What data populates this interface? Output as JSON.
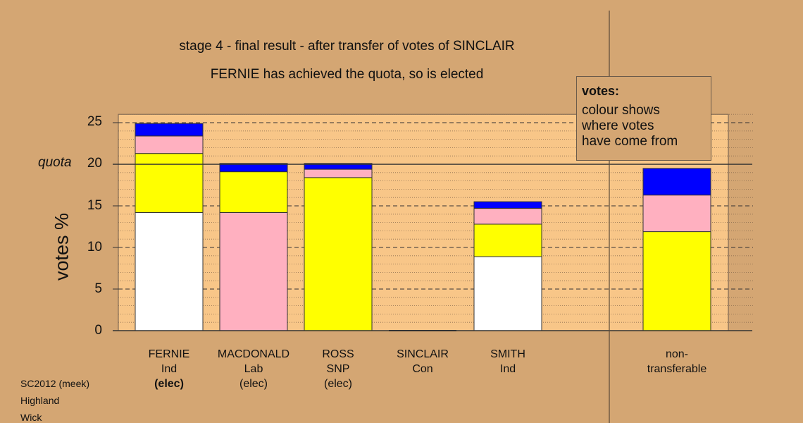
{
  "titles": {
    "line1": "stage 4 - final result - after transfer of votes of SINCLAIR",
    "line2": "FERNIE has achieved the quota, so is elected"
  },
  "legend": {
    "title": "votes:",
    "lines": [
      "colour shows",
      "where votes",
      "have come from"
    ]
  },
  "axis": {
    "ylabel": "votes %",
    "quota_label": "quota",
    "ticks": [
      "0",
      "5",
      "10",
      "15",
      "20",
      "25"
    ]
  },
  "candidates": [
    {
      "name": "FERNIE",
      "party": "Ind",
      "status": "(elec)",
      "status_bold": true
    },
    {
      "name": "MACDONALD",
      "party": "Lab",
      "status": "(elec)",
      "status_bold": false
    },
    {
      "name": "ROSS",
      "party": "SNP",
      "status": "(elec)",
      "status_bold": false
    },
    {
      "name": "SINCLAIR",
      "party": "Con",
      "status": "",
      "status_bold": false
    },
    {
      "name": "SMITH",
      "party": "Ind",
      "status": "",
      "status_bold": false
    }
  ],
  "nontransferable": {
    "line1": "non-",
    "line2": "transferable"
  },
  "footer": [
    "SC2012 (meek)",
    "Highland",
    "Wick"
  ],
  "colors": {
    "background": "#d4a673",
    "plot_area": "#f8c688",
    "white": "#ffffff",
    "yellow": "#ffff00",
    "pink": "#ffb0c0",
    "blue": "#0000ff"
  },
  "chart_data": {
    "type": "bar",
    "stacked": true,
    "categories": [
      "FERNIE",
      "MACDONALD",
      "ROSS",
      "SINCLAIR",
      "SMITH",
      "non-transferable"
    ],
    "ylabel": "votes %",
    "ylim": [
      0,
      26
    ],
    "quota": 20,
    "series": [
      {
        "color": "white",
        "values": [
          14.2,
          0,
          0,
          0,
          8.9,
          0
        ]
      },
      {
        "color": "pink",
        "values": [
          0,
          14.2,
          0,
          0,
          0,
          0
        ]
      },
      {
        "color": "yellow",
        "values": [
          7.1,
          4.9,
          18.4,
          0,
          3.9,
          11.9
        ]
      },
      {
        "color": "pink",
        "values": [
          2.1,
          0,
          1.0,
          0,
          1.9,
          4.4
        ]
      },
      {
        "color": "blue",
        "values": [
          1.5,
          1.0,
          0.7,
          0,
          0.8,
          3.2
        ]
      }
    ]
  }
}
